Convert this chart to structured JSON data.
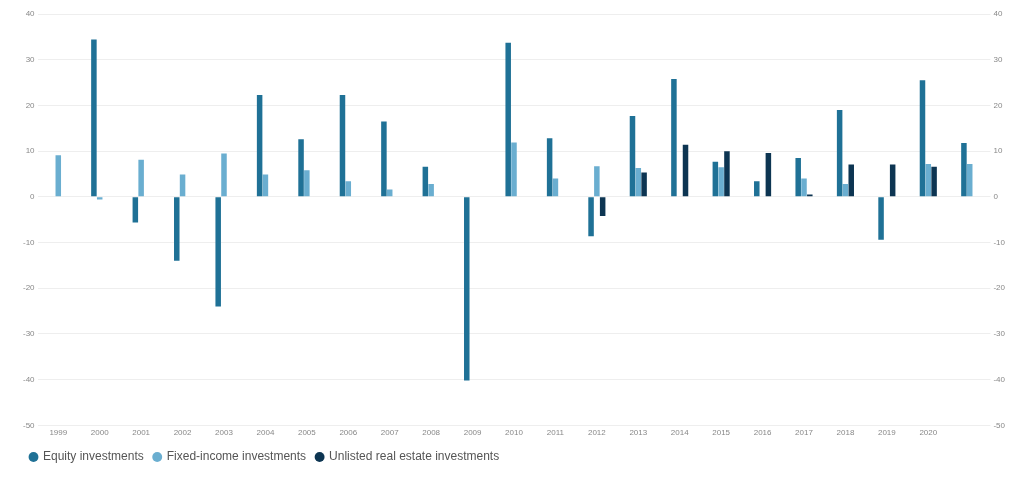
{
  "chart_data": {
    "type": "bar",
    "categories": [
      "1999",
      "2000",
      "2001",
      "2002",
      "2003",
      "2004",
      "2005",
      "2006",
      "2007",
      "2008",
      "2009",
      "2010",
      "2011",
      "2012",
      "2013",
      "2014",
      "2015",
      "2016",
      "2017",
      "2018",
      "2019",
      "2020",
      null
    ],
    "series": [
      {
        "name": "Equity investments",
        "color": "#1f7196",
        "values": [
          null,
          34.4,
          -5.6,
          -14,
          -24,
          22.3,
          12.6,
          22.3,
          16.5,
          6.6,
          -40.2,
          33.7,
          12.8,
          -8.6,
          17.7,
          25.8,
          7.7,
          3.4,
          8.5,
          19,
          -9.4,
          25.5,
          11.8
        ]
      },
      {
        "name": "Fixed-income investments",
        "color": "#6aaed0",
        "values": [
          9.1,
          -0.6,
          8.1,
          4.9,
          9.5,
          4.9,
          5.8,
          3.4,
          1.6,
          2.8,
          null,
          11.9,
          4,
          6.7,
          6.3,
          null,
          6.5,
          null,
          4,
          2.8,
          null,
          7.2,
          7.2
        ]
      },
      {
        "name": "Unlisted real estate investments",
        "color": "#0d3552",
        "values": [
          null,
          null,
          null,
          null,
          null,
          null,
          null,
          null,
          null,
          null,
          null,
          null,
          null,
          -4.2,
          5.3,
          11.4,
          10,
          9.6,
          0.5,
          7.1,
          7.1,
          6.6,
          null
        ]
      }
    ],
    "ylim": [
      -50,
      40
    ],
    "yticks": [
      -50,
      -40,
      -30,
      -20,
      -10,
      0,
      10,
      20,
      30,
      40
    ],
    "y2lim": [
      -50,
      40
    ],
    "y2ticks": [
      -50,
      -40,
      -30,
      -20,
      -10,
      0,
      10,
      20,
      30,
      40
    ],
    "grid": "y",
    "legend": "bottom left"
  }
}
